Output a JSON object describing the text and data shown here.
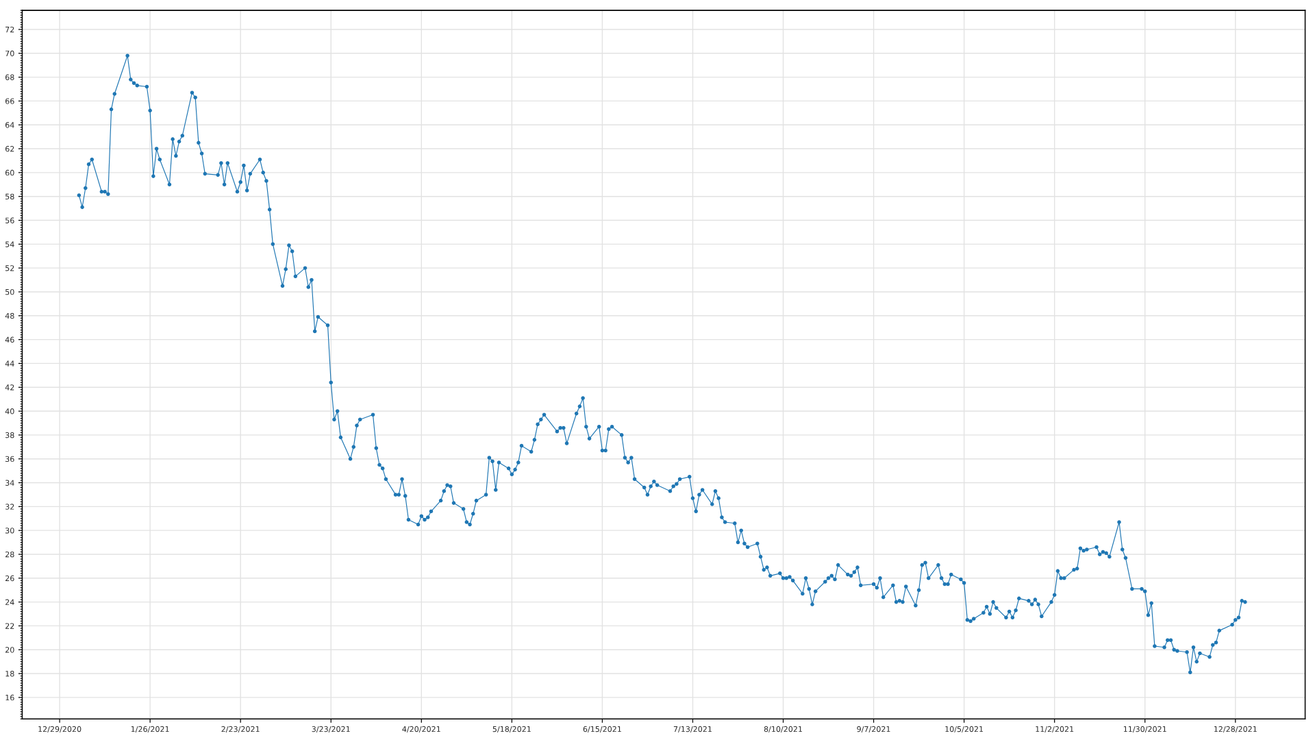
{
  "chart_data": {
    "type": "line",
    "x": [
      "2021-01-04",
      "2021-01-05",
      "2021-01-06",
      "2021-01-07",
      "2021-01-08",
      "2021-01-11",
      "2021-01-12",
      "2021-01-13",
      "2021-01-14",
      "2021-01-15",
      "2021-01-19",
      "2021-01-20",
      "2021-01-21",
      "2021-01-22",
      "2021-01-25",
      "2021-01-26",
      "2021-01-27",
      "2021-01-28",
      "2021-01-29",
      "2021-02-01",
      "2021-02-02",
      "2021-02-03",
      "2021-02-04",
      "2021-02-05",
      "2021-02-08",
      "2021-02-09",
      "2021-02-10",
      "2021-02-11",
      "2021-02-12",
      "2021-02-16",
      "2021-02-17",
      "2021-02-18",
      "2021-02-19",
      "2021-02-22",
      "2021-02-23",
      "2021-02-24",
      "2021-02-25",
      "2021-02-26",
      "2021-03-01",
      "2021-03-02",
      "2021-03-03",
      "2021-03-04",
      "2021-03-05",
      "2021-03-08",
      "2021-03-09",
      "2021-03-10",
      "2021-03-11",
      "2021-03-12",
      "2021-03-15",
      "2021-03-16",
      "2021-03-17",
      "2021-03-18",
      "2021-03-19",
      "2021-03-22",
      "2021-03-23",
      "2021-03-24",
      "2021-03-25",
      "2021-03-26",
      "2021-03-29",
      "2021-03-30",
      "2021-03-31",
      "2021-04-01",
      "2021-04-05",
      "2021-04-06",
      "2021-04-07",
      "2021-04-08",
      "2021-04-09",
      "2021-04-12",
      "2021-04-13",
      "2021-04-14",
      "2021-04-15",
      "2021-04-16",
      "2021-04-19",
      "2021-04-20",
      "2021-04-21",
      "2021-04-22",
      "2021-04-23",
      "2021-04-26",
      "2021-04-27",
      "2021-04-28",
      "2021-04-29",
      "2021-04-30",
      "2021-05-03",
      "2021-05-04",
      "2021-05-05",
      "2021-05-06",
      "2021-05-07",
      "2021-05-10",
      "2021-05-11",
      "2021-05-12",
      "2021-05-13",
      "2021-05-14",
      "2021-05-17",
      "2021-05-18",
      "2021-05-19",
      "2021-05-20",
      "2021-05-21",
      "2021-05-24",
      "2021-05-25",
      "2021-05-26",
      "2021-05-27",
      "2021-05-28",
      "2021-06-01",
      "2021-06-02",
      "2021-06-03",
      "2021-06-04",
      "2021-06-07",
      "2021-06-08",
      "2021-06-09",
      "2021-06-10",
      "2021-06-11",
      "2021-06-14",
      "2021-06-15",
      "2021-06-16",
      "2021-06-17",
      "2021-06-18",
      "2021-06-21",
      "2021-06-22",
      "2021-06-23",
      "2021-06-24",
      "2021-06-25",
      "2021-06-28",
      "2021-06-29",
      "2021-06-30",
      "2021-07-01",
      "2021-07-02",
      "2021-07-06",
      "2021-07-07",
      "2021-07-08",
      "2021-07-09",
      "2021-07-12",
      "2021-07-13",
      "2021-07-14",
      "2021-07-15",
      "2021-07-16",
      "2021-07-19",
      "2021-07-20",
      "2021-07-21",
      "2021-07-22",
      "2021-07-23",
      "2021-07-26",
      "2021-07-27",
      "2021-07-28",
      "2021-07-29",
      "2021-07-30",
      "2021-08-02",
      "2021-08-03",
      "2021-08-04",
      "2021-08-05",
      "2021-08-06",
      "2021-08-09",
      "2021-08-10",
      "2021-08-11",
      "2021-08-12",
      "2021-08-13",
      "2021-08-16",
      "2021-08-17",
      "2021-08-18",
      "2021-08-19",
      "2021-08-20",
      "2021-08-23",
      "2021-08-24",
      "2021-08-25",
      "2021-08-26",
      "2021-08-27",
      "2021-08-30",
      "2021-08-31",
      "2021-09-01",
      "2021-09-02",
      "2021-09-03",
      "2021-09-07",
      "2021-09-08",
      "2021-09-09",
      "2021-09-10",
      "2021-09-13",
      "2021-09-14",
      "2021-09-15",
      "2021-09-16",
      "2021-09-17",
      "2021-09-20",
      "2021-09-21",
      "2021-09-22",
      "2021-09-23",
      "2021-09-24",
      "2021-09-27",
      "2021-09-28",
      "2021-09-29",
      "2021-09-30",
      "2021-10-01",
      "2021-10-04",
      "2021-10-05",
      "2021-10-06",
      "2021-10-07",
      "2021-10-08",
      "2021-10-11",
      "2021-10-12",
      "2021-10-13",
      "2021-10-14",
      "2021-10-15",
      "2021-10-18",
      "2021-10-19",
      "2021-10-20",
      "2021-10-21",
      "2021-10-22",
      "2021-10-25",
      "2021-10-26",
      "2021-10-27",
      "2021-10-28",
      "2021-10-29",
      "2021-11-01",
      "2021-11-02",
      "2021-11-03",
      "2021-11-04",
      "2021-11-05",
      "2021-11-08",
      "2021-11-09",
      "2021-11-10",
      "2021-11-11",
      "2021-11-12",
      "2021-11-15",
      "2021-11-16",
      "2021-11-17",
      "2021-11-18",
      "2021-11-19",
      "2021-11-22",
      "2021-11-23",
      "2021-11-24",
      "2021-11-26",
      "2021-11-29",
      "2021-11-30",
      "2021-12-01",
      "2021-12-02",
      "2021-12-03",
      "2021-12-06",
      "2021-12-07",
      "2021-12-08",
      "2021-12-09",
      "2021-12-10",
      "2021-12-13",
      "2021-12-14",
      "2021-12-15",
      "2021-12-16",
      "2021-12-17",
      "2021-12-20",
      "2021-12-21",
      "2021-12-22",
      "2021-12-23",
      "2021-12-27",
      "2021-12-28",
      "2021-12-29",
      "2021-12-30",
      "2021-12-31"
    ],
    "series": [
      {
        "color": "#1f77b4",
        "values": [
          58.1,
          57.1,
          58.7,
          60.7,
          61.1,
          58.4,
          58.4,
          58.2,
          65.3,
          66.6,
          69.8,
          67.8,
          67.5,
          67.3,
          67.2,
          65.2,
          59.7,
          62.0,
          61.1,
          59.0,
          62.8,
          61.4,
          62.6,
          63.1,
          66.7,
          66.3,
          62.5,
          61.6,
          59.9,
          59.8,
          60.8,
          59.0,
          60.8,
          58.4,
          59.2,
          60.6,
          58.5,
          59.9,
          61.1,
          60.0,
          59.3,
          56.9,
          54.0,
          50.5,
          51.9,
          53.9,
          53.4,
          51.3,
          52.0,
          50.4,
          51.0,
          46.7,
          47.9,
          47.2,
          42.4,
          39.3,
          40.0,
          37.8,
          36.0,
          37.0,
          38.8,
          39.3,
          39.7,
          36.9,
          35.5,
          35.2,
          34.3,
          33.0,
          33.0,
          34.3,
          32.9,
          30.9,
          30.5,
          31.2,
          30.9,
          31.1,
          31.6,
          32.5,
          33.3,
          33.8,
          33.7,
          32.3,
          31.8,
          30.7,
          30.5,
          31.4,
          32.5,
          33.0,
          36.1,
          35.8,
          33.4,
          35.7,
          35.2,
          34.7,
          35.1,
          35.7,
          37.1,
          36.6,
          37.6,
          38.9,
          39.3,
          39.7,
          38.3,
          38.6,
          38.6,
          37.3,
          39.8,
          40.4,
          41.1,
          38.7,
          37.7,
          38.7,
          36.7,
          36.7,
          38.5,
          38.7,
          38.0,
          36.1,
          35.7,
          36.1,
          34.3,
          33.6,
          33.0,
          33.7,
          34.1,
          33.8,
          33.3,
          33.7,
          33.9,
          34.3,
          34.5,
          32.7,
          31.6,
          33.0,
          33.4,
          32.2,
          33.3,
          32.7,
          31.1,
          30.7,
          30.6,
          29.0,
          30.0,
          28.9,
          28.6,
          28.9,
          27.8,
          26.7,
          26.9,
          26.2,
          26.4,
          26.0,
          26.0,
          26.1,
          25.8,
          24.7,
          26.0,
          25.1,
          23.8,
          24.9,
          25.7,
          26.0,
          26.2,
          25.9,
          27.1,
          26.3,
          26.2,
          26.5,
          26.9,
          25.4,
          25.5,
          25.2,
          26.0,
          24.4,
          25.4,
          24.0,
          24.1,
          24.0,
          25.3,
          23.7,
          25.0,
          27.1,
          27.3,
          26.0,
          27.1,
          26.0,
          25.5,
          25.5,
          26.3,
          25.9,
          25.6,
          22.5,
          22.4,
          22.6,
          23.1,
          23.6,
          23.0,
          24.0,
          23.5,
          22.7,
          23.2,
          22.7,
          23.3,
          24.3,
          24.1,
          23.8,
          24.2,
          23.8,
          22.8,
          24.0,
          24.6,
          26.6,
          26.0,
          26.0,
          26.7,
          26.8,
          28.5,
          28.3,
          28.4,
          28.6,
          28.0,
          28.2,
          28.1,
          27.8,
          30.7,
          28.4,
          27.7,
          25.1,
          25.1,
          24.9,
          22.9,
          23.9,
          20.3,
          20.2,
          20.8,
          20.8,
          20.0,
          19.9,
          19.8,
          18.1,
          20.2,
          19.0,
          19.7,
          19.4,
          20.4,
          20.6,
          21.6,
          22.1,
          22.5,
          22.7,
          24.1,
          24.0
        ]
      }
    ],
    "xlim": [
      "2020-12-17T10:00",
      "2022-01-18T14:00"
    ],
    "xticks": [
      {
        "value": "2020-12-29",
        "label": "12/29/2020"
      },
      {
        "value": "2021-01-26",
        "label": "1/26/2021"
      },
      {
        "value": "2021-02-23",
        "label": "2/23/2021"
      },
      {
        "value": "2021-03-23",
        "label": "3/23/2021"
      },
      {
        "value": "2021-04-20",
        "label": "4/20/2021"
      },
      {
        "value": "2021-05-18",
        "label": "5/18/2021"
      },
      {
        "value": "2021-06-15",
        "label": "6/15/2021"
      },
      {
        "value": "2021-07-13",
        "label": "7/13/2021"
      },
      {
        "value": "2021-08-10",
        "label": "8/10/2021"
      },
      {
        "value": "2021-09-07",
        "label": "9/7/2021"
      },
      {
        "value": "2021-10-05",
        "label": "10/5/2021"
      },
      {
        "value": "2021-11-02",
        "label": "11/2/2021"
      },
      {
        "value": "2021-11-30",
        "label": "11/30/2021"
      },
      {
        "value": "2021-12-28",
        "label": "12/28/2021"
      }
    ],
    "ylim": [
      14.2,
      73.6
    ],
    "yticks": [
      16,
      18,
      20,
      22,
      24,
      26,
      28,
      30,
      32,
      34,
      36,
      38,
      40,
      42,
      44,
      46,
      48,
      50,
      52,
      54,
      56,
      58,
      60,
      62,
      64,
      66,
      68,
      70,
      72
    ],
    "grid": true,
    "marker": "circle",
    "line_style": "solid"
  }
}
